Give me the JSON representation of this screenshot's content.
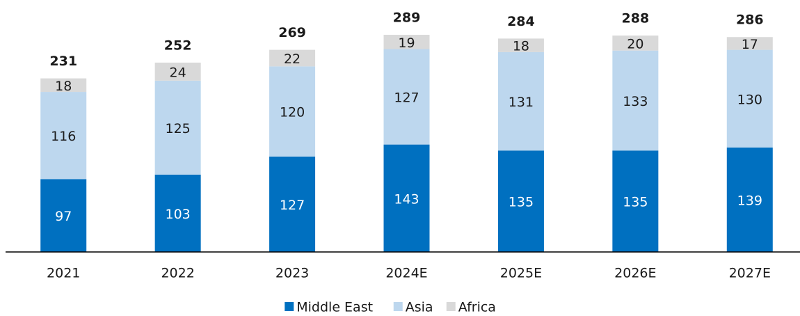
{
  "chart_data": {
    "type": "stacked_bar",
    "categories": [
      "2021",
      "2022",
      "2023",
      "2024E",
      "2025E",
      "2026E",
      "2027E"
    ],
    "series": [
      {
        "name": "Middle East",
        "color": "#0070c0",
        "values": [
          97,
          103,
          127,
          143,
          135,
          135,
          139
        ]
      },
      {
        "name": "Asia",
        "color": "#bdd7ee",
        "values": [
          116,
          125,
          120,
          127,
          131,
          133,
          130
        ]
      },
      {
        "name": "Africa",
        "color": "#d9d9d9",
        "values": [
          18,
          24,
          22,
          19,
          18,
          20,
          17
        ]
      }
    ],
    "totals": [
      231,
      252,
      269,
      289,
      284,
      288,
      286
    ],
    "legend": "bottom"
  }
}
